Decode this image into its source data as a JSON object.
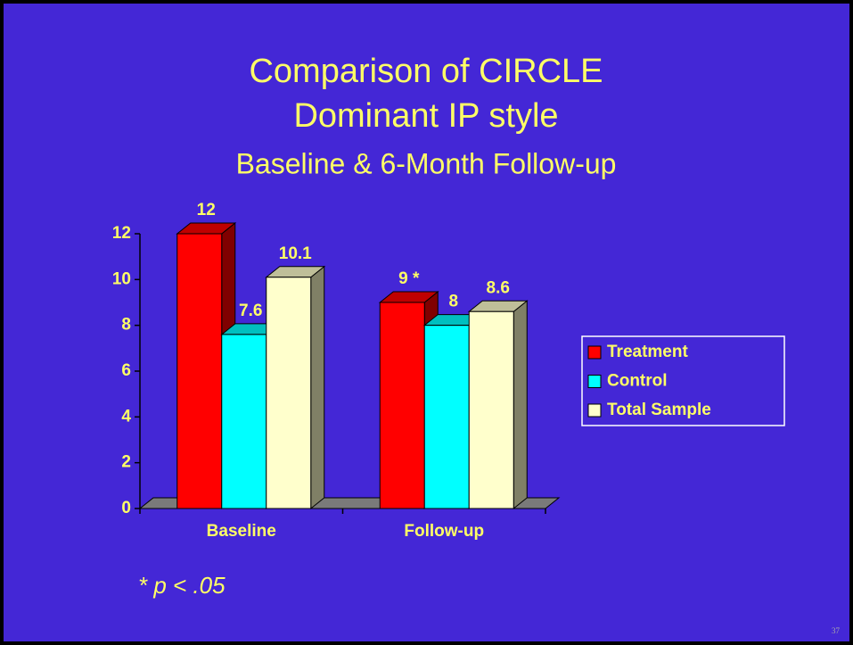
{
  "title_lines": [
    "Comparison of CIRCLE",
    "Dominant IP style"
  ],
  "page_number": "37",
  "footnote": "* p < .05",
  "chart_data": {
    "type": "bar3d",
    "subtitle": "Baseline & 6-Month Follow-up",
    "categories": [
      "Baseline",
      "Follow-up"
    ],
    "series": [
      {
        "name": "Treatment",
        "color": "#ff0000",
        "values": [
          12,
          9
        ],
        "value_labels": [
          "12",
          "9 *"
        ]
      },
      {
        "name": "Control",
        "color": "#00ffff",
        "values": [
          7.6,
          8
        ]
      },
      {
        "name": "Total Sample",
        "color": "#ffffcc",
        "values": [
          10.1,
          8.6
        ]
      }
    ],
    "ylim": [
      0,
      12
    ],
    "yticks": [
      0,
      2,
      4,
      6,
      8,
      10,
      12
    ],
    "legend": "right"
  }
}
